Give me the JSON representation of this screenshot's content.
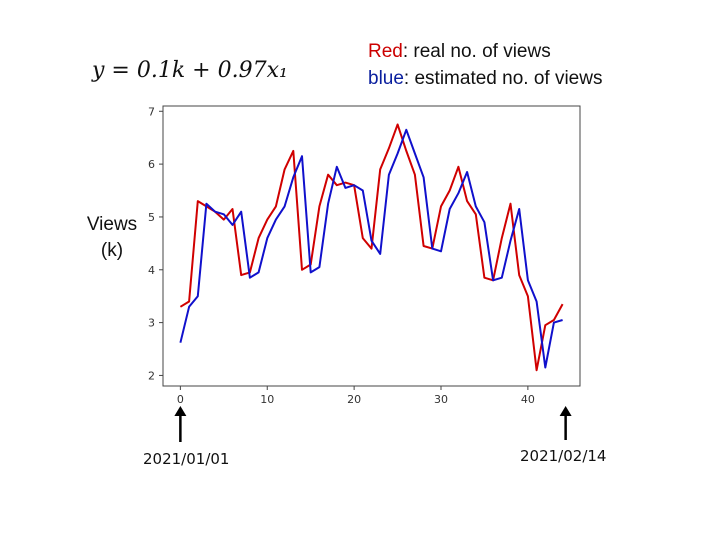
{
  "formula": "y = 0.1k + 0.97x₁",
  "legend": {
    "red_word": "Red",
    "red_rest": ": real no. of views",
    "blue_word": "blue",
    "blue_rest": ":  estimated no. of views"
  },
  "ylabel_line1": "Views",
  "ylabel_line2": "(k)",
  "dates": {
    "start": "2021/01/01",
    "end": "2021/02/14"
  },
  "chart_data": {
    "type": "line",
    "xlim": [
      -2,
      46
    ],
    "ylim": [
      1.8,
      7.1
    ],
    "xticks": [
      0,
      10,
      20,
      30,
      40
    ],
    "yticks": [
      2,
      3,
      4,
      5,
      6,
      7
    ],
    "grid": false,
    "series": [
      {
        "name": "Red",
        "color": "#d00000",
        "values": [
          [
            0,
            3.3
          ],
          [
            1,
            3.4
          ],
          [
            2,
            5.3
          ],
          [
            3,
            5.2
          ],
          [
            4,
            5.1
          ],
          [
            5,
            4.95
          ],
          [
            6,
            5.15
          ],
          [
            7,
            3.9
          ],
          [
            8,
            3.95
          ],
          [
            9,
            4.6
          ],
          [
            10,
            4.95
          ],
          [
            11,
            5.2
          ],
          [
            12,
            5.9
          ],
          [
            13,
            6.25
          ],
          [
            14,
            4.0
          ],
          [
            15,
            4.1
          ],
          [
            16,
            5.2
          ],
          [
            17,
            5.8
          ],
          [
            18,
            5.6
          ],
          [
            19,
            5.65
          ],
          [
            20,
            5.6
          ],
          [
            21,
            4.6
          ],
          [
            22,
            4.4
          ],
          [
            23,
            5.9
          ],
          [
            24,
            6.3
          ],
          [
            25,
            6.75
          ],
          [
            26,
            6.25
          ],
          [
            27,
            5.8
          ],
          [
            28,
            4.45
          ],
          [
            29,
            4.4
          ],
          [
            30,
            5.2
          ],
          [
            31,
            5.5
          ],
          [
            32,
            5.95
          ],
          [
            33,
            5.3
          ],
          [
            34,
            5.05
          ],
          [
            35,
            3.85
          ],
          [
            36,
            3.8
          ],
          [
            37,
            4.6
          ],
          [
            38,
            5.25
          ],
          [
            39,
            3.9
          ],
          [
            40,
            3.5
          ],
          [
            41,
            2.1
          ],
          [
            42,
            2.95
          ],
          [
            43,
            3.05
          ],
          [
            44,
            3.35
          ]
        ]
      },
      {
        "name": "blue",
        "color": "#1010cc",
        "values": [
          [
            0,
            2.62
          ],
          [
            1,
            3.3
          ],
          [
            2,
            3.5
          ],
          [
            3,
            5.25
          ],
          [
            4,
            5.1
          ],
          [
            5,
            5.05
          ],
          [
            6,
            4.85
          ],
          [
            7,
            5.1
          ],
          [
            8,
            3.85
          ],
          [
            9,
            3.95
          ],
          [
            10,
            4.6
          ],
          [
            11,
            4.95
          ],
          [
            12,
            5.2
          ],
          [
            13,
            5.75
          ],
          [
            14,
            6.15
          ],
          [
            15,
            3.95
          ],
          [
            16,
            4.05
          ],
          [
            17,
            5.25
          ],
          [
            18,
            5.95
          ],
          [
            19,
            5.55
          ],
          [
            20,
            5.6
          ],
          [
            21,
            5.5
          ],
          [
            22,
            4.55
          ],
          [
            23,
            4.3
          ],
          [
            24,
            5.8
          ],
          [
            25,
            6.2
          ],
          [
            26,
            6.65
          ],
          [
            27,
            6.2
          ],
          [
            28,
            5.75
          ],
          [
            29,
            4.4
          ],
          [
            30,
            4.35
          ],
          [
            31,
            5.15
          ],
          [
            32,
            5.45
          ],
          [
            33,
            5.85
          ],
          [
            34,
            5.2
          ],
          [
            35,
            4.9
          ],
          [
            36,
            3.8
          ],
          [
            37,
            3.85
          ],
          [
            38,
            4.55
          ],
          [
            39,
            5.15
          ],
          [
            40,
            3.8
          ],
          [
            41,
            3.4
          ],
          [
            42,
            2.15
          ],
          [
            43,
            3.0
          ],
          [
            44,
            3.05
          ]
        ]
      }
    ]
  }
}
